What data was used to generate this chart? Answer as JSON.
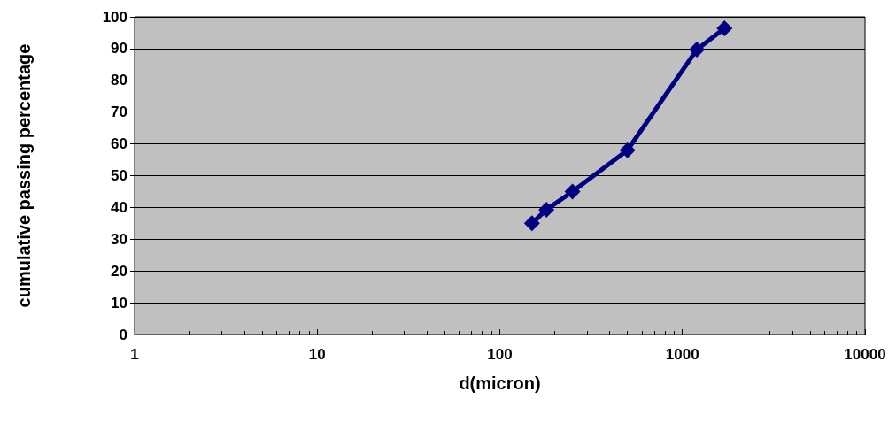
{
  "chart_data": {
    "type": "line",
    "xlabel": "d(micron)",
    "ylabel": "cumulative passing percentage",
    "x": [
      150,
      180,
      250,
      500,
      1200,
      1700
    ],
    "series": [
      {
        "color": "#000080",
        "values": [
          35,
          39.3,
          45,
          58,
          89.7,
          96.4
        ]
      }
    ],
    "xlim": [
      1,
      10000
    ],
    "xticks": [
      1,
      10,
      100,
      1000,
      10000
    ],
    "ylim": [
      0,
      100
    ],
    "yticks": [
      0,
      10,
      20,
      30,
      40,
      50,
      60,
      70,
      80,
      90,
      100
    ],
    "log": "x",
    "grid": "y",
    "marker": "diamond",
    "line_style": "solid"
  }
}
